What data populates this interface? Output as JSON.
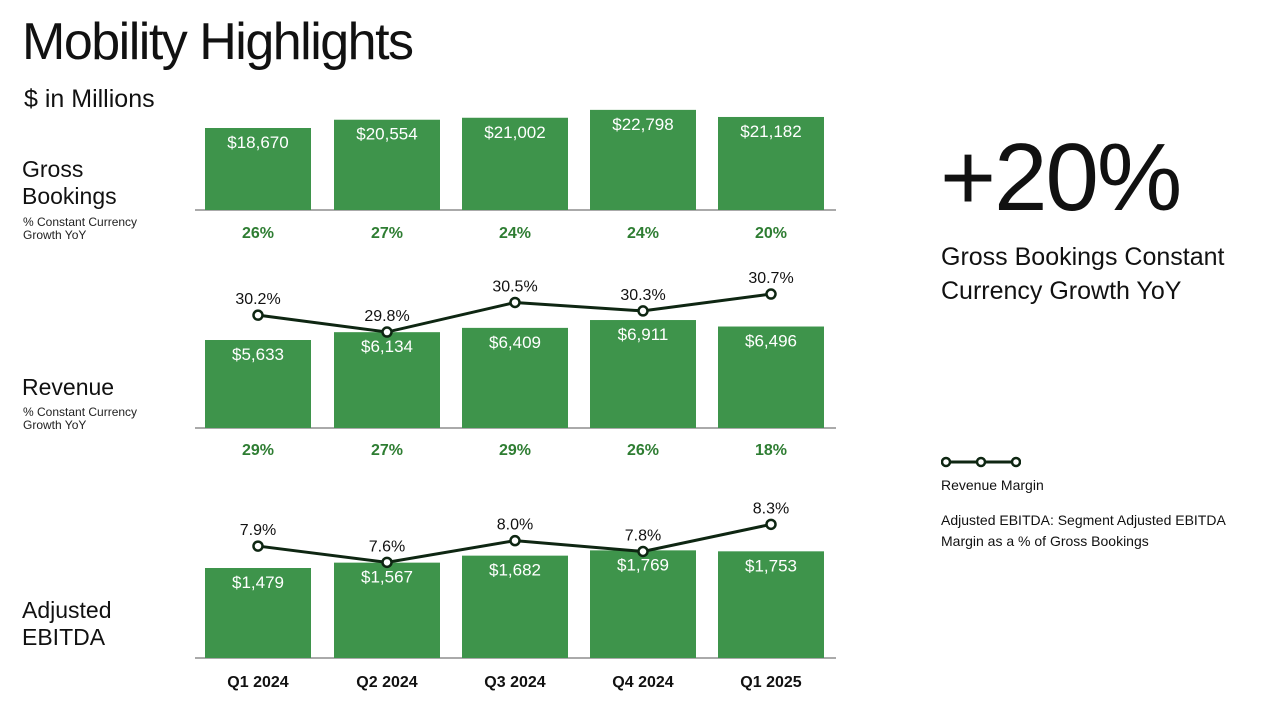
{
  "page": {
    "title": "Mobility Highlights",
    "unit": "$ in Millions"
  },
  "rows": {
    "gross_bookings": {
      "label": "Gross",
      "label2": "Bookings",
      "sub": "% Constant Currency Growth YoY"
    },
    "revenue": {
      "label": "Revenue",
      "sub": "% Constant Currency Growth YoY"
    },
    "ebitda": {
      "label": "Adjusted",
      "label2": "EBITDA"
    }
  },
  "callout": {
    "value": "+20%",
    "caption": "Gross Bookings Constant Currency Growth YoY"
  },
  "legend": {
    "line_label": "Revenue Margin",
    "note": "Adjusted EBITDA: Segment Adjusted EBITDA Margin as a % of Gross Bookings"
  },
  "colors": {
    "bar": "#3e944b",
    "growth_text": "#2e7d32",
    "line": "#0e2612",
    "axis": "#555555"
  },
  "chart_data": [
    {
      "type": "bar",
      "name": "Gross Bookings",
      "categories": [
        "Q1 2024",
        "Q2 2024",
        "Q3 2024",
        "Q4 2024",
        "Q1 2025"
      ],
      "values": [
        18670,
        20554,
        21002,
        22798,
        21182
      ],
      "value_labels": [
        "$18,670",
        "$20,554",
        "$21,002",
        "$22,798",
        "$21,182"
      ],
      "growth_labels": [
        "26%",
        "27%",
        "24%",
        "24%",
        "20%"
      ]
    },
    {
      "type": "bar",
      "name": "Revenue",
      "categories": [
        "Q1 2024",
        "Q2 2024",
        "Q3 2024",
        "Q4 2024",
        "Q1 2025"
      ],
      "values": [
        5633,
        6134,
        6409,
        6911,
        6496
      ],
      "value_labels": [
        "$5,633",
        "$6,134",
        "$6,409",
        "$6,911",
        "$6,496"
      ],
      "growth_labels": [
        "29%",
        "27%",
        "29%",
        "26%",
        "18%"
      ],
      "margin_values": [
        30.2,
        29.8,
        30.5,
        30.3,
        30.7
      ],
      "margin_labels": [
        "30.2%",
        "29.8%",
        "30.5%",
        "30.3%",
        "30.7%"
      ]
    },
    {
      "type": "bar",
      "name": "Adjusted EBITDA",
      "categories": [
        "Q1 2024",
        "Q2 2024",
        "Q3 2024",
        "Q4 2024",
        "Q1 2025"
      ],
      "values": [
        1479,
        1567,
        1682,
        1769,
        1753
      ],
      "value_labels": [
        "$1,479",
        "$1,567",
        "$1,682",
        "$1,769",
        "$1,753"
      ],
      "margin_values": [
        7.9,
        7.6,
        8.0,
        7.8,
        8.3
      ],
      "margin_labels": [
        "7.9%",
        "7.6%",
        "8.0%",
        "7.8%",
        "8.3%"
      ]
    }
  ]
}
